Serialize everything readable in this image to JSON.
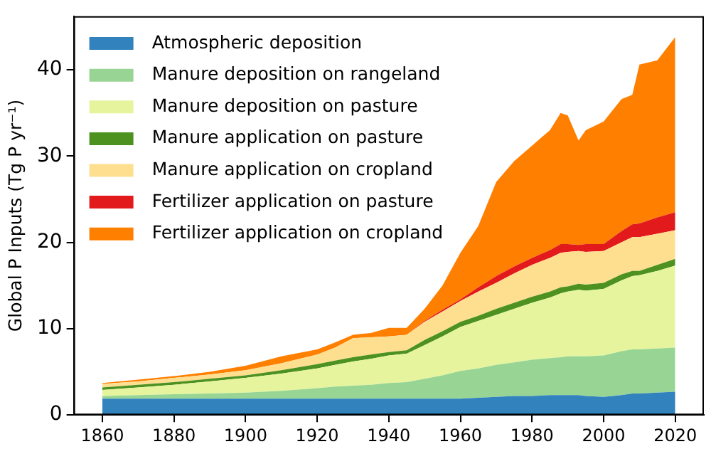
{
  "chart_data": {
    "type": "area",
    "stacked": true,
    "ylabel": "Global P Inputs (Tg P yr⁻¹)",
    "x": [
      1860,
      1870,
      1880,
      1890,
      1900,
      1910,
      1920,
      1925,
      1930,
      1935,
      1940,
      1945,
      1950,
      1955,
      1960,
      1965,
      1970,
      1975,
      1980,
      1985,
      1988,
      1990,
      1993,
      1995,
      2000,
      2005,
      2008,
      2010,
      2015,
      2020
    ],
    "xlim": [
      1852,
      2028
    ],
    "xticks": [
      1860,
      1880,
      1900,
      1920,
      1940,
      1960,
      1980,
      2000,
      2020
    ],
    "ylim": [
      0,
      46.2
    ],
    "yticks": [
      0,
      10,
      20,
      30,
      40
    ],
    "grid": false,
    "legend": "top left",
    "series": [
      {
        "name": "Atmospheric deposition",
        "color": "#3182bd",
        "values": [
          1.9,
          1.9,
          1.9,
          1.9,
          1.9,
          1.9,
          1.9,
          1.9,
          1.9,
          1.9,
          1.9,
          1.9,
          1.9,
          1.9,
          1.9,
          2.0,
          2.1,
          2.2,
          2.2,
          2.3,
          2.3,
          2.3,
          2.3,
          2.2,
          2.1,
          2.3,
          2.5,
          2.5,
          2.6,
          2.7
        ]
      },
      {
        "name": "Manure deposition on rangeland",
        "color": "#98d594",
        "values": [
          0.3,
          0.4,
          0.5,
          0.6,
          0.7,
          0.9,
          1.2,
          1.4,
          1.5,
          1.6,
          1.8,
          1.9,
          2.3,
          2.7,
          3.2,
          3.4,
          3.7,
          3.9,
          4.2,
          4.3,
          4.4,
          4.5,
          4.5,
          4.6,
          4.8,
          5.1,
          5.1,
          5.1,
          5.1,
          5.1
        ]
      },
      {
        "name": "Manure deposition on pasture",
        "color": "#e6f59d",
        "values": [
          0.7,
          0.9,
          1.1,
          1.4,
          1.7,
          2.0,
          2.3,
          2.5,
          2.8,
          3.0,
          3.2,
          3.3,
          3.9,
          4.5,
          5.1,
          5.5,
          5.8,
          6.2,
          6.6,
          7.0,
          7.4,
          7.5,
          7.7,
          7.6,
          7.7,
          8.2,
          8.5,
          8.6,
          9.0,
          9.5
        ]
      },
      {
        "name": "Manure application on pasture",
        "color": "#4d9221",
        "values": [
          0.3,
          0.3,
          0.3,
          0.3,
          0.3,
          0.4,
          0.5,
          0.5,
          0.5,
          0.5,
          0.4,
          0.4,
          0.6,
          0.6,
          0.6,
          0.6,
          0.7,
          0.7,
          0.7,
          0.7,
          0.7,
          0.6,
          0.7,
          0.7,
          0.7,
          0.7,
          0.6,
          0.5,
          0.7,
          0.8
        ]
      },
      {
        "name": "Manure application on cropland",
        "color": "#fedf8f",
        "values": [
          0.4,
          0.4,
          0.5,
          0.5,
          0.6,
          0.8,
          1.1,
          1.5,
          2.2,
          2.0,
          1.8,
          1.8,
          2.1,
          2.3,
          2.4,
          2.8,
          3.0,
          3.4,
          3.7,
          3.9,
          4.0,
          4.0,
          3.8,
          3.8,
          3.7,
          3.7,
          3.9,
          3.9,
          3.6,
          3.3
        ]
      },
      {
        "name": "Fertilizer application on pasture",
        "color": "#e31a1c",
        "values": [
          0,
          0,
          0,
          0,
          0,
          0,
          0,
          0,
          0,
          0,
          0,
          0,
          0.1,
          0.2,
          0.2,
          0.5,
          0.8,
          0.8,
          0.8,
          0.9,
          1.0,
          0.9,
          0.7,
          0.9,
          0.8,
          1.3,
          1.5,
          1.6,
          1.9,
          2.1
        ]
      },
      {
        "name": "Fertilizer application on cropland",
        "color": "#ff7f00",
        "values": [
          0.1,
          0.2,
          0.2,
          0.3,
          0.5,
          0.8,
          0.6,
          0.6,
          0.4,
          0.5,
          1.0,
          0.8,
          1.4,
          2.8,
          5.4,
          7.1,
          10.9,
          12.2,
          13.0,
          13.9,
          15.2,
          14.9,
          12.1,
          13.2,
          14.2,
          15.3,
          15.0,
          18.4,
          18.2,
          20.3
        ]
      }
    ]
  }
}
